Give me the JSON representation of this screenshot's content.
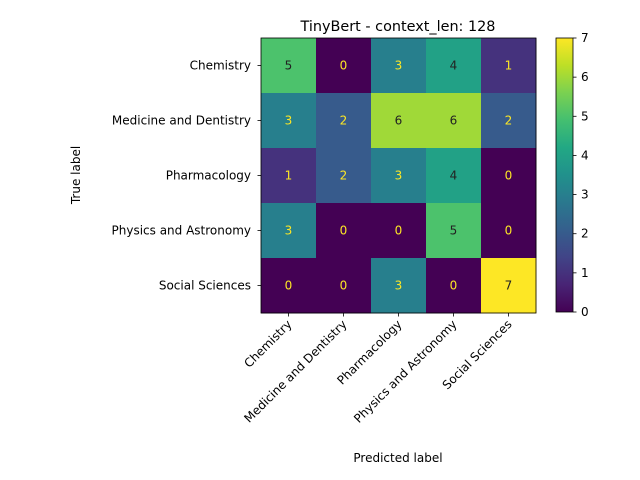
{
  "chart_data": {
    "type": "heatmap",
    "title": "TinyBert - context_len: 128",
    "xlabel": "Predicted label",
    "ylabel": "True label",
    "row_labels": [
      "Chemistry",
      "Medicine and Dentistry",
      "Pharmacology",
      "Physics and Astronomy",
      "Social Sciences"
    ],
    "col_labels": [
      "Chemistry",
      "Medicine and Dentistry",
      "Pharmacology",
      "Physics and Astronomy",
      "Social Sciences"
    ],
    "values": [
      [
        5,
        0,
        3,
        4,
        1
      ],
      [
        3,
        2,
        6,
        6,
        2
      ],
      [
        1,
        2,
        3,
        4,
        0
      ],
      [
        3,
        0,
        0,
        5,
        0
      ],
      [
        0,
        0,
        3,
        0,
        7
      ]
    ],
    "vmin": 0,
    "vmax": 7,
    "colormap": "viridis",
    "colorbar_ticks": [
      0,
      1,
      2,
      3,
      4,
      5,
      6,
      7
    ],
    "text_color_dark_cells": "#fde725",
    "text_color_light_cells": "#222222"
  }
}
